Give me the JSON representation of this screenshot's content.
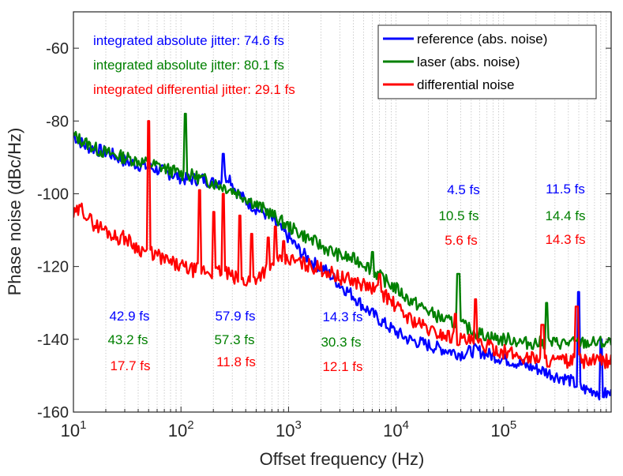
{
  "chart_data": {
    "type": "line",
    "title": "",
    "xlabel": "Offset frequency (Hz)",
    "ylabel": "Phase noise (dBc/Hz)",
    "xscale": "log",
    "xlim": [
      10,
      1000000
    ],
    "ylim": [
      -160,
      -50
    ],
    "grid": "x-minor dotted",
    "x_ticks": [
      {
        "value": 10,
        "base": "10",
        "exp": "1"
      },
      {
        "value": 100,
        "base": "10",
        "exp": "2"
      },
      {
        "value": 1000,
        "base": "10",
        "exp": "3"
      },
      {
        "value": 10000,
        "base": "10",
        "exp": "4"
      },
      {
        "value": 100000,
        "base": "10",
        "exp": "5"
      }
    ],
    "y_ticks": [
      {
        "value": -60,
        "label": "-60"
      },
      {
        "value": -80,
        "label": "-80"
      },
      {
        "value": -100,
        "label": "-100"
      },
      {
        "value": -120,
        "label": "-120"
      },
      {
        "value": -140,
        "label": "-140"
      },
      {
        "value": -160,
        "label": "-160"
      }
    ],
    "legend": {
      "position": "top-right",
      "entries": [
        {
          "label": "reference (abs. noise)",
          "color": "#0000ff"
        },
        {
          "label": "laser (abs. noise)",
          "color": "#008000"
        },
        {
          "label": "differential noise",
          "color": "#ff0000"
        }
      ]
    },
    "series": [
      {
        "name": "reference (abs. noise)",
        "color": "#0000ff",
        "x": [
          10,
          13,
          17,
          22,
          30,
          40,
          55,
          70,
          90,
          110,
          130,
          160,
          200,
          250,
          280,
          320,
          400,
          500,
          650,
          800,
          1000,
          1300,
          1700,
          2200,
          3000,
          4000,
          5000,
          6000,
          8000,
          10000,
          13000,
          17000,
          22000,
          30000,
          40000,
          55000,
          70000,
          90000,
          120000,
          150000,
          200000,
          250000,
          300000,
          400000,
          500000,
          600000,
          700000,
          800000,
          1000000
        ],
        "y": [
          -84,
          -87,
          -88,
          -89,
          -91,
          -92,
          -93,
          -94,
          -95,
          -96,
          -96,
          -96,
          -97,
          -96,
          -95,
          -99,
          -102,
          -104,
          -106,
          -109,
          -112,
          -116,
          -119,
          -121,
          -125,
          -128,
          -131,
          -133,
          -136,
          -138,
          -140,
          -141,
          -142,
          -143,
          -144,
          -143,
          -144,
          -145,
          -146,
          -147,
          -148,
          -149,
          -150,
          -151,
          -153,
          -154,
          -154,
          -155,
          -155
        ]
      },
      {
        "name": "laser (abs. noise)",
        "color": "#008000",
        "x": [
          10,
          13,
          17,
          22,
          30,
          40,
          55,
          70,
          90,
          110,
          130,
          160,
          200,
          250,
          300,
          400,
          500,
          650,
          800,
          1000,
          1300,
          1700,
          2200,
          3000,
          4000,
          5000,
          6000,
          8000,
          10000,
          13000,
          17000,
          22000,
          30000,
          40000,
          55000,
          70000,
          90000,
          120000,
          150000,
          200000,
          300000,
          500000,
          1000000
        ],
        "y": [
          -84,
          -86,
          -88,
          -89,
          -90,
          -91,
          -92,
          -93,
          -94,
          -95,
          -95,
          -96,
          -97,
          -98,
          -99,
          -101,
          -103,
          -105,
          -107,
          -109,
          -111,
          -113,
          -115,
          -117,
          -118,
          -119,
          -121,
          -124,
          -126,
          -129,
          -131,
          -133,
          -135,
          -136,
          -138,
          -139,
          -140,
          -140,
          -141,
          -141,
          -141,
          -141,
          -141
        ]
      },
      {
        "name": "differential noise",
        "color": "#ff0000",
        "x": [
          10,
          12,
          15,
          20,
          25,
          30,
          40,
          50,
          60,
          80,
          100,
          130,
          160,
          200,
          250,
          300,
          400,
          500,
          600,
          800,
          1000,
          1300,
          1700,
          2200,
          3000,
          4000,
          5000,
          6000,
          8000,
          10000,
          13000,
          17000,
          22000,
          30000,
          40000,
          55000,
          70000,
          90000,
          120000,
          150000,
          200000,
          300000,
          500000,
          700000,
          1000000
        ],
        "y": [
          -106,
          -104,
          -108,
          -110,
          -112,
          -112,
          -115,
          -116,
          -117,
          -119,
          -120,
          -121,
          -121,
          -122,
          -121,
          -123,
          -124,
          -123,
          -121,
          -119,
          -118,
          -119,
          -120,
          -121,
          -123,
          -124,
          -125,
          -126,
          -128,
          -131,
          -134,
          -136,
          -138,
          -139,
          -140,
          -141,
          -142,
          -143,
          -144,
          -145,
          -145,
          -146,
          -146,
          -146,
          -146
        ]
      }
    ],
    "spikes": [
      {
        "series": "reference (abs. noise)",
        "x": 250,
        "peak": -89
      },
      {
        "series": "reference (abs. noise)",
        "x": 500000,
        "peak": -127
      },
      {
        "series": "reference (abs. noise)",
        "x": 800000,
        "peak": -140
      },
      {
        "series": "laser (abs. noise)",
        "x": 110,
        "peak": -78
      },
      {
        "series": "laser (abs. noise)",
        "x": 160,
        "peak": -96
      },
      {
        "series": "laser (abs. noise)",
        "x": 6000,
        "peak": -116
      },
      {
        "series": "laser (abs. noise)",
        "x": 38000,
        "peak": -122
      },
      {
        "series": "laser (abs. noise)",
        "x": 250000,
        "peak": -130
      },
      {
        "series": "differential noise",
        "x": 50,
        "peak": -80
      },
      {
        "series": "differential noise",
        "x": 150,
        "peak": -99
      },
      {
        "series": "differential noise",
        "x": 200,
        "peak": -105
      },
      {
        "series": "differential noise",
        "x": 250,
        "peak": -100
      },
      {
        "series": "differential noise",
        "x": 350,
        "peak": -106
      },
      {
        "series": "differential noise",
        "x": 450,
        "peak": -111
      },
      {
        "series": "differential noise",
        "x": 650,
        "peak": -112
      },
      {
        "series": "differential noise",
        "x": 750,
        "peak": -109
      },
      {
        "series": "differential noise",
        "x": 900,
        "peak": -113
      },
      {
        "series": "differential noise",
        "x": 7000,
        "peak": -122
      },
      {
        "series": "differential noise",
        "x": 36000,
        "peak": -133
      },
      {
        "series": "differential noise",
        "x": 55000,
        "peak": -129
      },
      {
        "series": "differential noise",
        "x": 230000,
        "peak": -136
      },
      {
        "series": "differential noise",
        "x": 480000,
        "peak": -131
      }
    ],
    "annotations": [
      {
        "text": "integrated absolute jitter: 74.6 fs",
        "color": "#0000ff"
      },
      {
        "text": "integrated absolute jitter: 80.1 fs",
        "color": "#008000"
      },
      {
        "text": "integrated differential jitter: 29.1 fs",
        "color": "#ff0000"
      }
    ],
    "jitter_groups": [
      {
        "decade": "10 Hz - 100 Hz",
        "values": [
          "42.9 fs",
          "43.2 fs",
          "17.7 fs"
        ]
      },
      {
        "decade": "100 Hz - 1 kHz",
        "values": [
          "57.9 fs",
          "57.3 fs",
          "11.8 fs"
        ]
      },
      {
        "decade": "1 kHz - 10 kHz",
        "values": [
          "14.3 fs",
          "30.3 fs",
          "12.1 fs"
        ]
      },
      {
        "decade": "10 kHz - 100 kHz",
        "values": [
          "4.5 fs",
          "10.5 fs",
          "5.6 fs"
        ]
      },
      {
        "decade": "100 kHz - 1 MHz",
        "values": [
          "11.5 fs",
          "14.4 fs",
          "14.3 fs"
        ]
      }
    ]
  }
}
